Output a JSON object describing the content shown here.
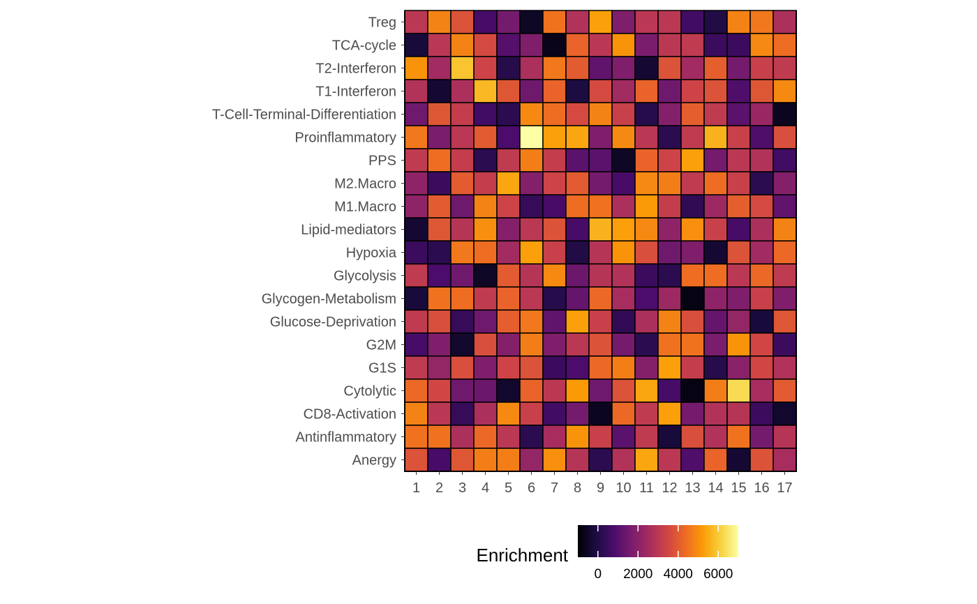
{
  "chart_data": {
    "type": "heatmap",
    "title": "",
    "xlabel": "",
    "ylabel": "",
    "x_categories": [
      "1",
      "2",
      "3",
      "4",
      "5",
      "6",
      "7",
      "8",
      "9",
      "10",
      "11",
      "12",
      "13",
      "14",
      "15",
      "16",
      "17"
    ],
    "y_categories": [
      "Treg",
      "TCA-cycle",
      "T2-Interferon",
      "T1-Interferon",
      "T-Cell-Terminal-Differentiation",
      "Proinflammatory",
      "PPS",
      "M2.Macro",
      "M1.Macro",
      "Lipid-mediators",
      "Hypoxia",
      "Glycolysis",
      "Glycogen-Metabolism",
      "Glucose-Deprivation",
      "G2M",
      "G1S",
      "Cytolytic",
      "CD8-Activation",
      "Antinflammatory",
      "Anergy"
    ],
    "values": [
      [
        3000,
        4800,
        3800,
        700,
        1600,
        -500,
        4500,
        2800,
        5300,
        1800,
        3000,
        3000,
        600,
        0,
        4800,
        4600,
        2700
      ],
      [
        -200,
        3000,
        4800,
        3600,
        1000,
        1800,
        -700,
        4200,
        3000,
        5100,
        1700,
        3000,
        3100,
        500,
        500,
        4900,
        4400
      ],
      [
        5100,
        2500,
        5900,
        3400,
        100,
        2700,
        4600,
        4000,
        1200,
        1800,
        -300,
        3800,
        2500,
        4100,
        1600,
        3300,
        3100
      ],
      [
        2800,
        -300,
        2700,
        5700,
        3900,
        1500,
        4200,
        -100,
        3600,
        2500,
        4200,
        1500,
        3400,
        3800,
        900,
        3900,
        4900
      ],
      [
        1500,
        3900,
        3200,
        600,
        200,
        4900,
        4400,
        3600,
        4800,
        3300,
        100,
        1900,
        4100,
        3100,
        1100,
        2300,
        -600
      ],
      [
        4600,
        1700,
        3000,
        4000,
        800,
        7000,
        5300,
        5400,
        1800,
        4900,
        3000,
        200,
        3100,
        5600,
        3300,
        900,
        3700
      ],
      [
        3100,
        4400,
        3200,
        200,
        3100,
        4700,
        3200,
        1100,
        1100,
        -500,
        4200,
        3400,
        5300,
        1600,
        3000,
        2800,
        600
      ],
      [
        2100,
        500,
        4000,
        3200,
        5400,
        1900,
        3400,
        4000,
        1600,
        700,
        4900,
        4700,
        3100,
        4400,
        3300,
        200,
        1900
      ],
      [
        2100,
        4000,
        1500,
        4800,
        3400,
        400,
        700,
        4400,
        4500,
        2700,
        5200,
        3200,
        300,
        2400,
        4100,
        3600,
        1200
      ],
      [
        -300,
        3900,
        2900,
        5000,
        1900,
        3000,
        3800,
        700,
        5600,
        5300,
        4900,
        2100,
        5000,
        3300,
        700,
        2700,
        4800
      ],
      [
        500,
        200,
        4600,
        4400,
        2500,
        5300,
        3300,
        0,
        2900,
        5100,
        3700,
        1500,
        1800,
        -300,
        3800,
        2500,
        4300
      ],
      [
        3100,
        800,
        1500,
        -500,
        4000,
        2900,
        4900,
        1400,
        2900,
        2800,
        500,
        200,
        4400,
        4400,
        3000,
        4300,
        3100
      ],
      [
        -200,
        4500,
        4400,
        3100,
        4200,
        3000,
        100,
        1300,
        4300,
        2600,
        800,
        2400,
        -800,
        2100,
        1800,
        3300,
        1800
      ],
      [
        3100,
        3700,
        400,
        1500,
        4100,
        4600,
        1200,
        5300,
        3300,
        300,
        2700,
        4800,
        3700,
        1300,
        2200,
        -200,
        3900
      ],
      [
        700,
        1800,
        -400,
        3700,
        1900,
        4700,
        1800,
        3000,
        3800,
        1600,
        200,
        4500,
        4500,
        1700,
        5100,
        3500,
        500
      ],
      [
        3100,
        2200,
        3700,
        1800,
        3400,
        3800,
        500,
        800,
        4300,
        4700,
        1900,
        5300,
        3200,
        100,
        2000,
        3500,
        2800
      ],
      [
        4300,
        3500,
        1500,
        1400,
        -400,
        4200,
        3000,
        5200,
        1500,
        3800,
        5400,
        700,
        -800,
        4700,
        6300,
        2600,
        4000
      ],
      [
        4800,
        3000,
        400,
        2700,
        4900,
        3300,
        600,
        1600,
        -600,
        4300,
        3100,
        5300,
        1600,
        2800,
        2900,
        500,
        -400
      ],
      [
        4500,
        4500,
        2700,
        4300,
        3000,
        200,
        2600,
        5100,
        3300,
        1100,
        3100,
        -200,
        3700,
        2800,
        4500,
        1600,
        2900
      ],
      [
        3800,
        700,
        3900,
        4700,
        4700,
        2200,
        5000,
        2900,
        200,
        2800,
        5400,
        3000,
        900,
        4200,
        -300,
        3800,
        2600
      ]
    ],
    "colorbar": {
      "title": "Enrichment",
      "min": -1000,
      "max": 7000,
      "ticks": [
        0,
        2000,
        4000,
        6000
      ],
      "tick_labels": [
        "0",
        "2000",
        "4000",
        "6000"
      ],
      "colormap": "inferno",
      "placement": "bottom"
    },
    "cell_border_color": "#000000"
  }
}
